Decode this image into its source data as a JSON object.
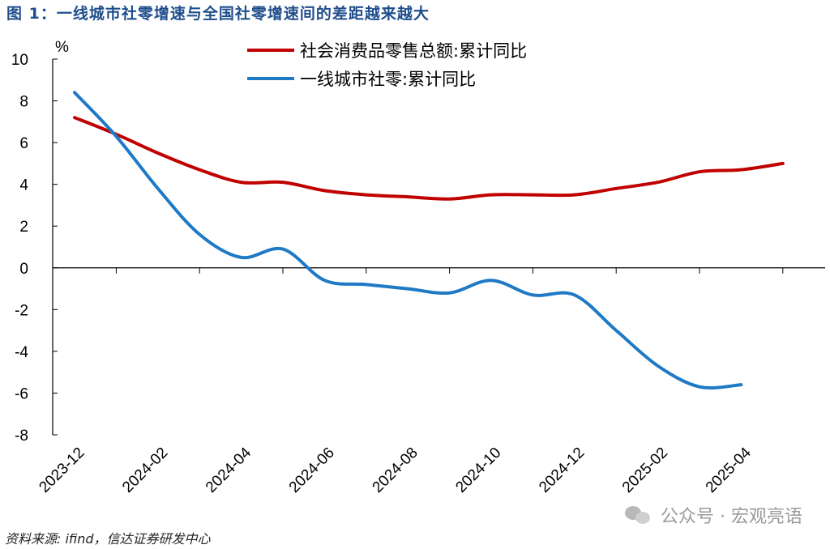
{
  "title": "图 1：一线城市社零增速与全国社零增速间的差距越来越大",
  "source": "资料来源: ifind，信达证券研发中心",
  "watermark": "公众号 · 宏观亮语",
  "colors": {
    "title": "#1f4e8c",
    "series_red": "#c00000",
    "series_blue": "#1f7ac6"
  },
  "chart_data": {
    "type": "line",
    "ylabel": "%",
    "ylim": [
      -8,
      10
    ],
    "yticks": [
      10,
      8,
      6,
      4,
      2,
      0,
      -2,
      -4,
      -6,
      -8
    ],
    "x": [
      "2023-12",
      "2024-01",
      "2024-02",
      "2024-03",
      "2024-04",
      "2024-05",
      "2024-06",
      "2024-07",
      "2024-08",
      "2024-09",
      "2024-10",
      "2024-11",
      "2024-12",
      "2025-01",
      "2025-02",
      "2025-03",
      "2025-04",
      "2025-05"
    ],
    "xtick_labels": [
      "2023-12",
      "2024-02",
      "2024-04",
      "2024-06",
      "2024-08",
      "2024-10",
      "2024-12",
      "2025-02",
      "2025-04"
    ],
    "legend_position": "top",
    "grid": false,
    "series": [
      {
        "name": "社会消费品零售总额:累计同比",
        "color": "#c00000",
        "values": [
          7.2,
          6.4,
          5.5,
          4.7,
          4.1,
          4.1,
          3.7,
          3.5,
          3.4,
          3.3,
          3.5,
          3.5,
          3.5,
          3.8,
          4.1,
          4.6,
          4.7,
          5.0
        ]
      },
      {
        "name": "一线城市社零:累计同比",
        "color": "#1f7ac6",
        "values": [
          8.4,
          6.3,
          3.8,
          1.6,
          0.5,
          0.9,
          -0.6,
          -0.8,
          -1.0,
          -1.2,
          -0.6,
          -1.3,
          -1.3,
          -3.0,
          -4.7,
          -5.7,
          -5.6,
          null
        ]
      }
    ]
  }
}
